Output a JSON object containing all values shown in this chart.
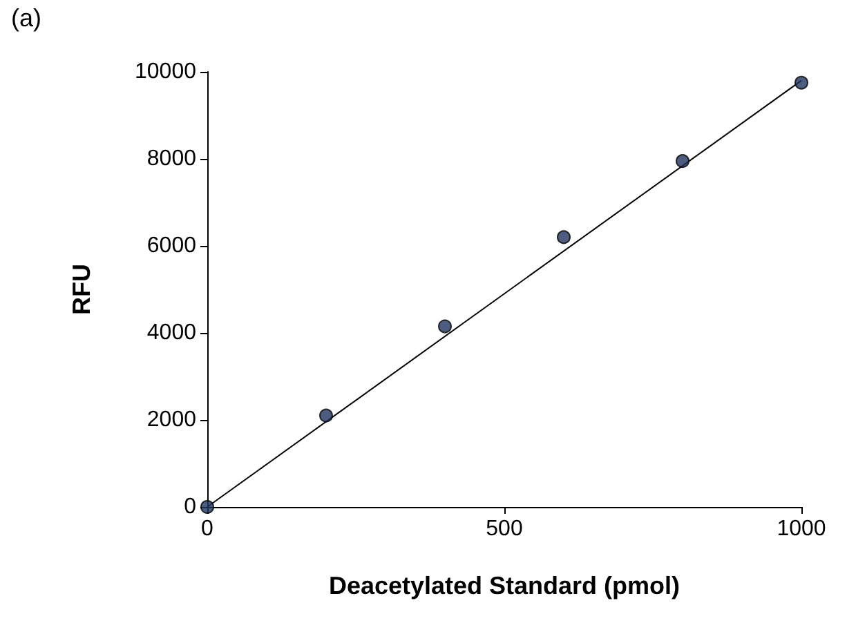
{
  "chart_data": {
    "type": "scatter",
    "xlabel": "Deacetylated Standard (pmol)",
    "ylabel": "RFU",
    "annotations": [
      "(a)"
    ],
    "x": [
      0,
      200,
      400,
      600,
      800,
      1000
    ],
    "series": [
      {
        "type": "scatter",
        "color": "#1f3560",
        "values": [
          0,
          2100,
          4150,
          6200,
          7950,
          9750
        ],
        "marker": "circle"
      },
      {
        "type": "line",
        "color": "#000000",
        "x": [
          0,
          1000
        ],
        "values": [
          0,
          9800
        ],
        "marker": "none",
        "line_style": "solid"
      }
    ],
    "xlim": [
      0,
      1000
    ],
    "xticks": [
      0,
      500,
      1000
    ],
    "ylim": [
      0,
      10000
    ],
    "yticks": [
      0,
      2000,
      4000,
      6000,
      8000,
      10000
    ],
    "grid": false
  }
}
